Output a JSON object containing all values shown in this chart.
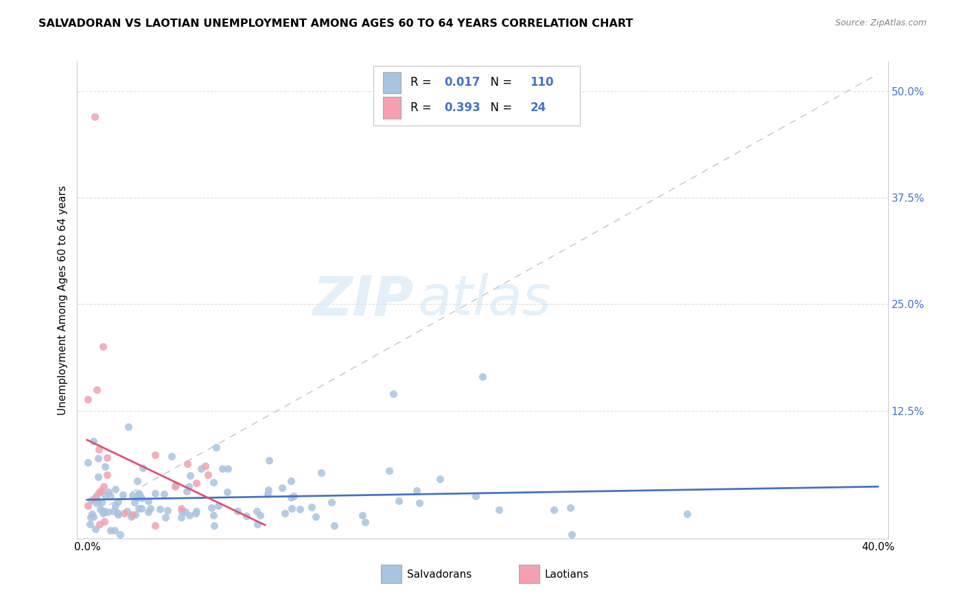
{
  "title": "SALVADORAN VS LAOTIAN UNEMPLOYMENT AMONG AGES 60 TO 64 YEARS CORRELATION CHART",
  "source": "Source: ZipAtlas.com",
  "ylabel": "Unemployment Among Ages 60 to 64 years",
  "x_lim": [
    0.0,
    0.4
  ],
  "y_lim": [
    -0.025,
    0.535
  ],
  "salvadoran_color": "#a8c4e0",
  "laotian_color": "#f4a0b0",
  "salvadoran_line_color": "#4472c4",
  "laotian_line_color": "#e05070",
  "r_salvadoran": 0.017,
  "n_salvadoran": 110,
  "r_laotian": 0.393,
  "n_laotian": 24,
  "watermark_zip": "ZIP",
  "watermark_atlas": "atlas",
  "legend_value_color": "#4472c4",
  "right_tick_color": "#4472c4",
  "grid_color": "#dddddd",
  "ref_line_color": "#cccccc"
}
